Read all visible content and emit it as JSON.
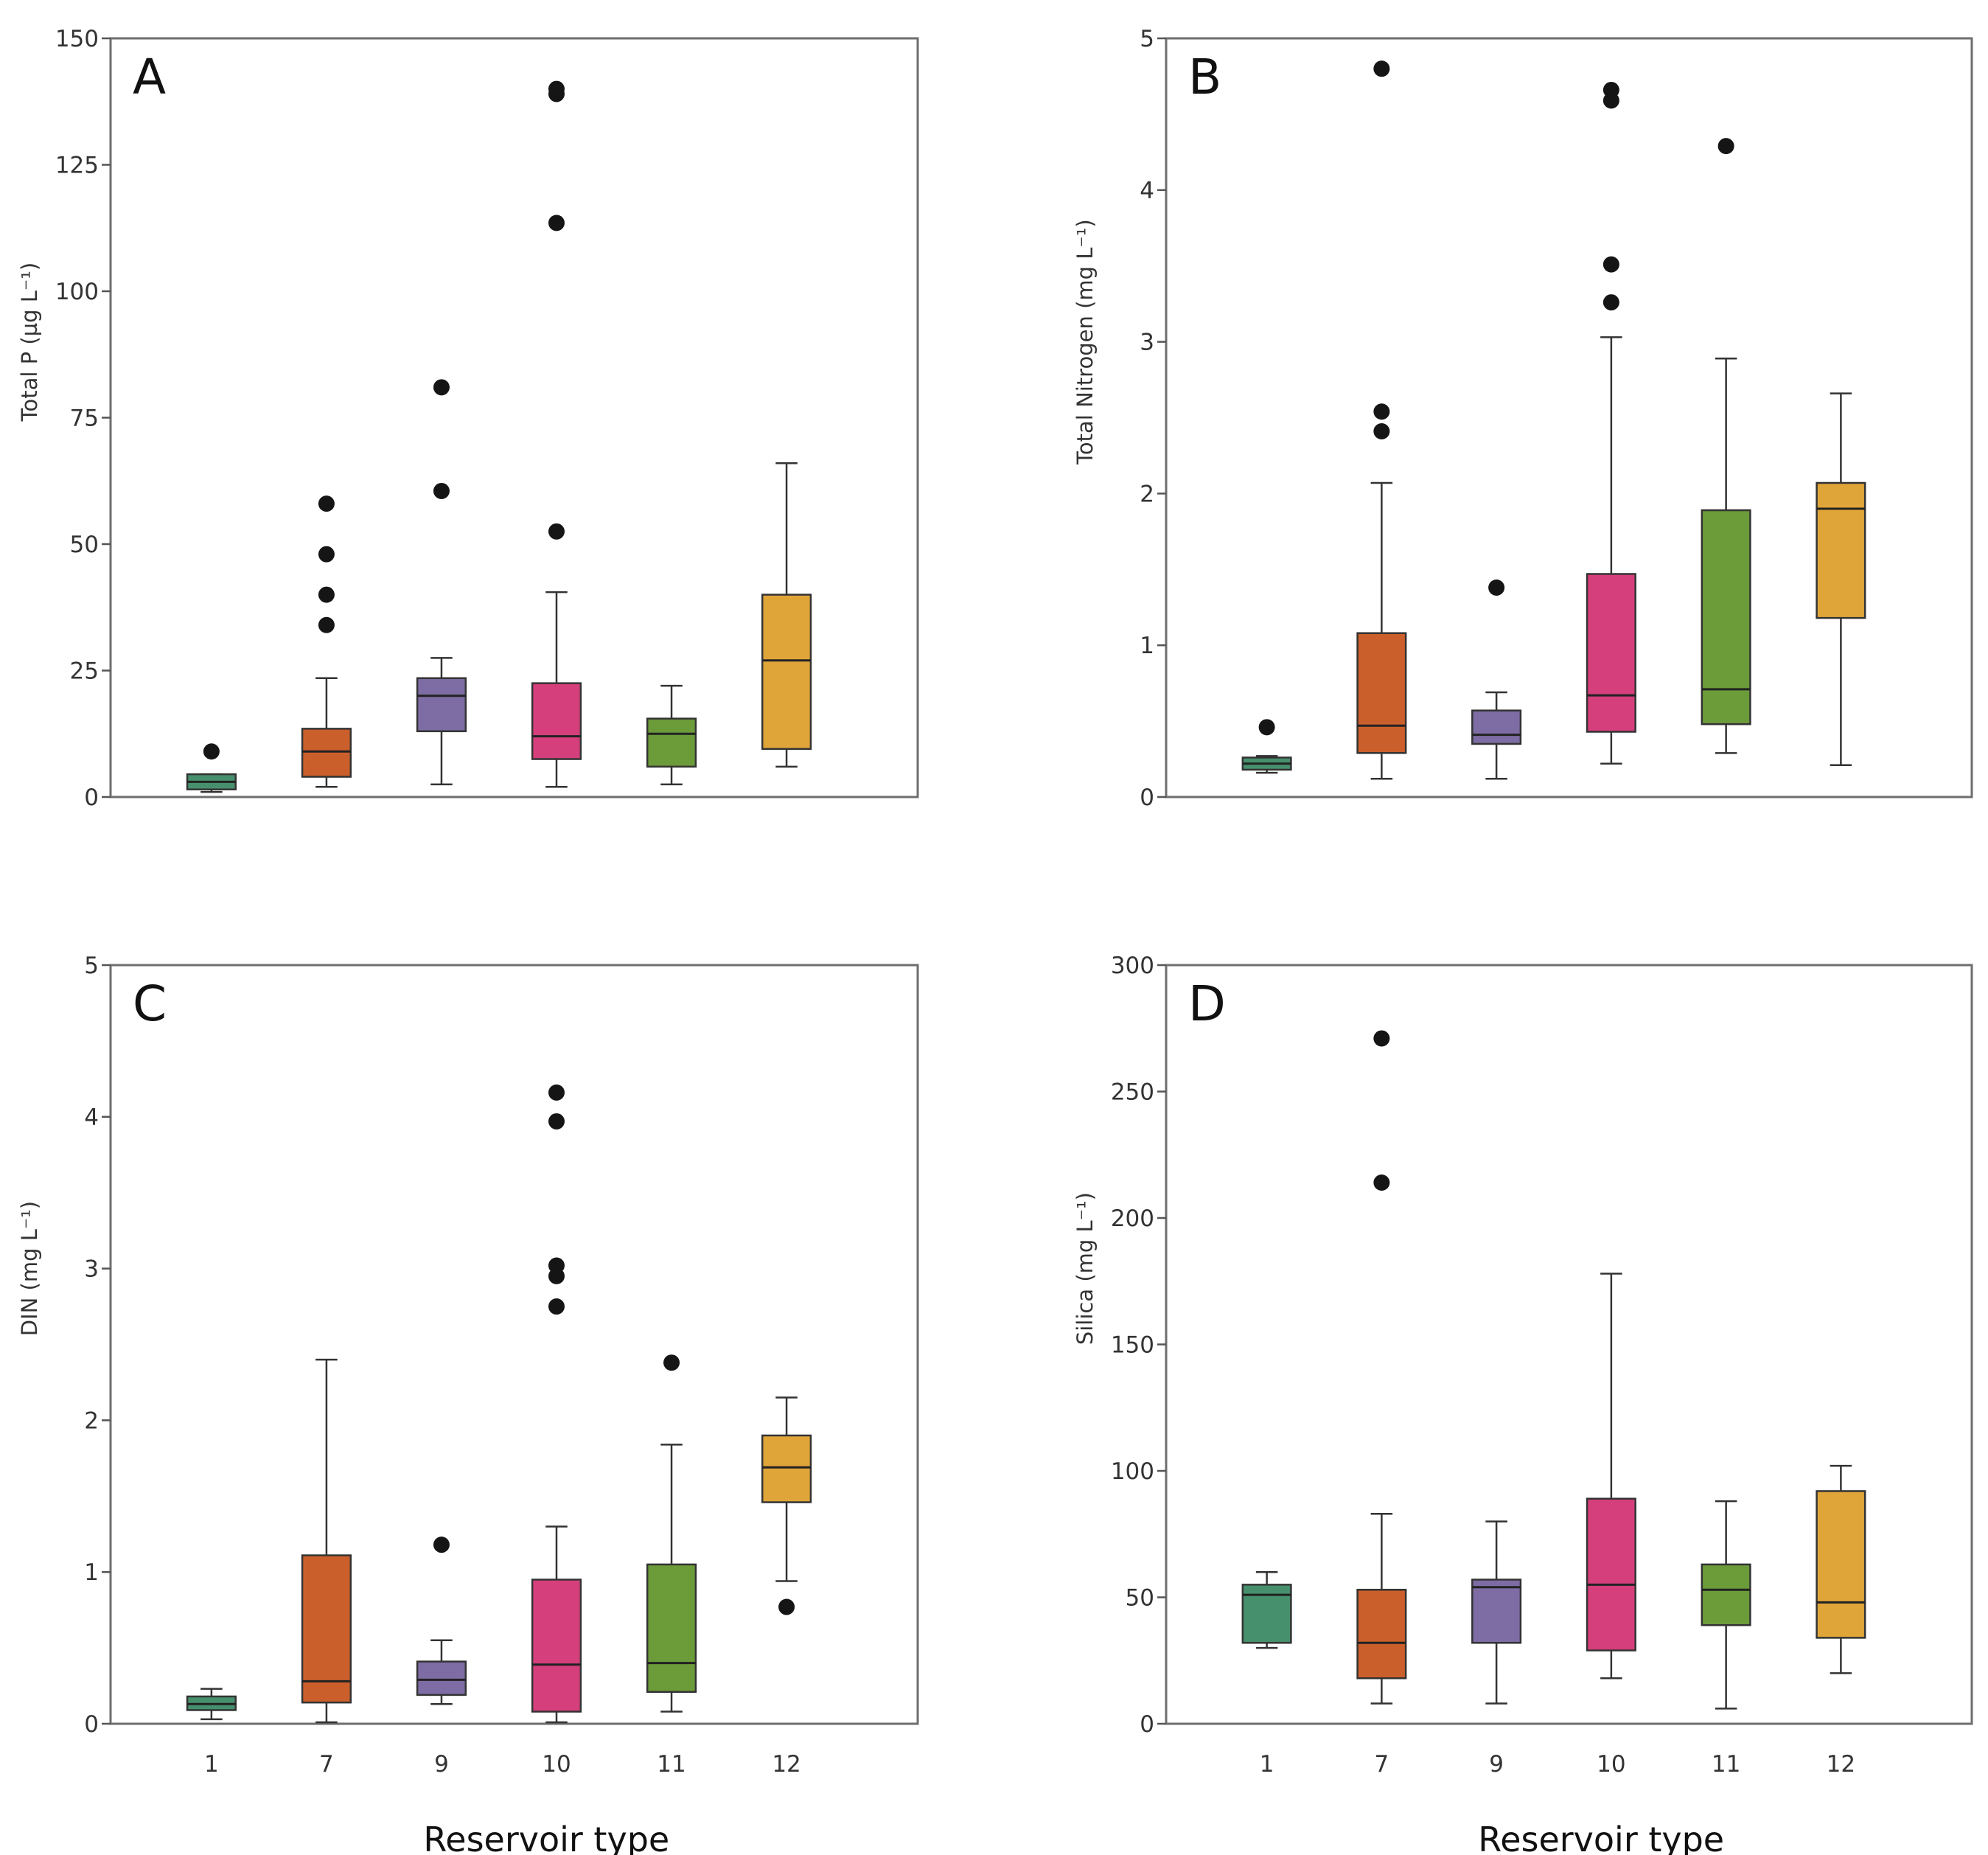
{
  "colors": {
    "1": "#46906d",
    "7": "#cb5f2b",
    "9": "#7e6ca4",
    "10": "#d53f7b",
    "11": "#6c9b3a",
    "12": "#e0a539"
  },
  "chart_data": [
    {
      "type": "box",
      "panel": "A",
      "ylabel": "Total P (µg L⁻¹)",
      "xlabel": "",
      "ylim": [
        0,
        150
      ],
      "yticks": [
        0,
        25,
        50,
        75,
        100,
        125,
        150
      ],
      "categories": [
        "1",
        "7",
        "9",
        "10",
        "11",
        "12"
      ],
      "show_xticks": false,
      "boxes": [
        {
          "low": 1,
          "q1": 1.5,
          "median": 3,
          "q3": 4.5,
          "high": 4.5,
          "outliers": [
            9
          ]
        },
        {
          "low": 2,
          "q1": 4,
          "median": 9,
          "q3": 13.5,
          "high": 23.5,
          "outliers": [
            34,
            40,
            48,
            58
          ]
        },
        {
          "low": 2.5,
          "q1": 13,
          "median": 20,
          "q3": 23.5,
          "high": 27.5,
          "outliers": [
            60.5,
            81
          ]
        },
        {
          "low": 2,
          "q1": 7.5,
          "median": 12,
          "q3": 22.5,
          "high": 40.5,
          "outliers": [
            52.5,
            113.5,
            139,
            140
          ]
        },
        {
          "low": 2.5,
          "q1": 6,
          "median": 12.5,
          "q3": 15.5,
          "high": 22,
          "outliers": []
        },
        {
          "low": 6,
          "q1": 9.5,
          "median": 27,
          "q3": 40,
          "high": 66,
          "outliers": []
        }
      ]
    },
    {
      "type": "box",
      "panel": "B",
      "ylabel": "Total Nitrogen (mg L⁻¹)",
      "xlabel": "",
      "ylim": [
        0,
        5
      ],
      "yticks": [
        0,
        1,
        2,
        3,
        4,
        5
      ],
      "categories": [
        "1",
        "7",
        "9",
        "10",
        "11",
        "12"
      ],
      "show_xticks": false,
      "boxes": [
        {
          "low": 0.16,
          "q1": 0.18,
          "median": 0.22,
          "q3": 0.26,
          "high": 0.27,
          "outliers": [
            0.46
          ]
        },
        {
          "low": 0.12,
          "q1": 0.29,
          "median": 0.47,
          "q3": 1.08,
          "high": 2.07,
          "outliers": [
            2.41,
            2.54,
            4.8
          ]
        },
        {
          "low": 0.12,
          "q1": 0.35,
          "median": 0.41,
          "q3": 0.57,
          "high": 0.69,
          "outliers": [
            1.38
          ]
        },
        {
          "low": 0.22,
          "q1": 0.43,
          "median": 0.67,
          "q3": 1.47,
          "high": 3.03,
          "outliers": [
            3.26,
            3.51,
            4.59,
            4.66
          ]
        },
        {
          "low": 0.29,
          "q1": 0.48,
          "median": 0.71,
          "q3": 1.89,
          "high": 2.89,
          "outliers": [
            4.29
          ]
        },
        {
          "low": 0.21,
          "q1": 1.18,
          "median": 1.9,
          "q3": 2.07,
          "high": 2.66,
          "outliers": []
        }
      ]
    },
    {
      "type": "box",
      "panel": "C",
      "ylabel": "DIN (mg L⁻¹)",
      "xlabel": "Reservoir type",
      "ylim": [
        0,
        5
      ],
      "yticks": [
        0,
        1,
        2,
        3,
        4,
        5
      ],
      "categories": [
        "1",
        "7",
        "9",
        "10",
        "11",
        "12"
      ],
      "show_xticks": true,
      "boxes": [
        {
          "low": 0.03,
          "q1": 0.09,
          "median": 0.13,
          "q3": 0.18,
          "high": 0.23,
          "outliers": []
        },
        {
          "low": 0.01,
          "q1": 0.14,
          "median": 0.28,
          "q3": 1.11,
          "high": 2.4,
          "outliers": []
        },
        {
          "low": 0.13,
          "q1": 0.19,
          "median": 0.29,
          "q3": 0.41,
          "high": 0.55,
          "outliers": [
            1.18
          ]
        },
        {
          "low": 0.01,
          "q1": 0.08,
          "median": 0.39,
          "q3": 0.95,
          "high": 1.3,
          "outliers": [
            2.75,
            2.95,
            3.02,
            3.97,
            4.16
          ]
        },
        {
          "low": 0.08,
          "q1": 0.21,
          "median": 0.4,
          "q3": 1.05,
          "high": 1.84,
          "outliers": [
            2.38
          ]
        },
        {
          "low": 0.94,
          "q1": 1.46,
          "median": 1.69,
          "q3": 1.9,
          "high": 2.15,
          "outliers": [
            0.77
          ]
        }
      ]
    },
    {
      "type": "box",
      "panel": "D",
      "ylabel": "Silica (mg L⁻¹)",
      "xlabel": "Reservoir type",
      "ylim": [
        0,
        300
      ],
      "yticks": [
        0,
        50,
        100,
        150,
        200,
        250,
        300
      ],
      "categories": [
        "1",
        "7",
        "9",
        "10",
        "11",
        "12"
      ],
      "show_xticks": true,
      "boxes": [
        {
          "low": 30,
          "q1": 32,
          "median": 51,
          "q3": 55,
          "high": 60,
          "outliers": []
        },
        {
          "low": 8,
          "q1": 18,
          "median": 32,
          "q3": 53,
          "high": 83,
          "outliers": [
            214,
            271
          ]
        },
        {
          "low": 8,
          "q1": 32,
          "median": 54,
          "q3": 57,
          "high": 80,
          "outliers": []
        },
        {
          "low": 18,
          "q1": 29,
          "median": 55,
          "q3": 89,
          "high": 178,
          "outliers": []
        },
        {
          "low": 6,
          "q1": 39,
          "median": 53,
          "q3": 63,
          "high": 88,
          "outliers": []
        },
        {
          "low": 20,
          "q1": 34,
          "median": 48,
          "q3": 92,
          "high": 102,
          "outliers": []
        }
      ]
    }
  ]
}
